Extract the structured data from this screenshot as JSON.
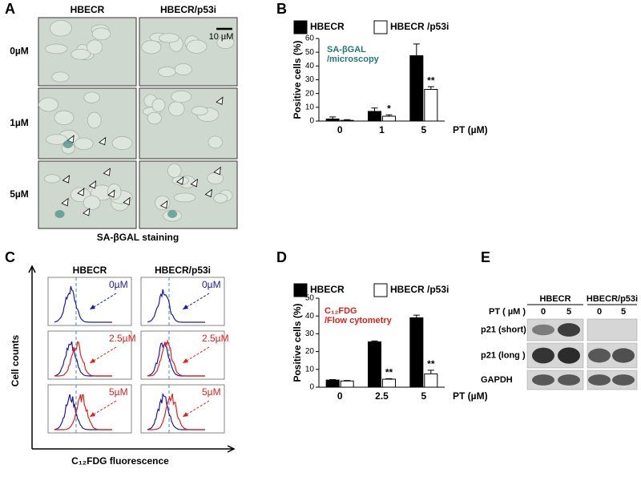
{
  "panel_a": {
    "label": "A",
    "columns": [
      "HBECR",
      "HBECR/p53i"
    ],
    "rows": [
      "0µM",
      "1µM",
      "5µM"
    ],
    "scale_bar": "10 µM",
    "caption": "SA-βGAL staining"
  },
  "chart_data": [
    {
      "type": "bar",
      "label": "B",
      "categories": [
        "0",
        "1",
        "5"
      ],
      "x_label": "PT (µM)",
      "y_label": "Positive cells (%)",
      "annotation": [
        "SA-βGAL",
        "/microscopy"
      ],
      "annotation_color": "#1f7a6e",
      "series": [
        {
          "name": "HBECR",
          "color": "#000000",
          "values": [
            1.5,
            7,
            47.5
          ],
          "errors": [
            1.5,
            2.5,
            8.5
          ]
        },
        {
          "name": "HBECR /p53i",
          "color": "#ffffff",
          "values": [
            0.5,
            3.5,
            23
          ],
          "errors": [
            0.5,
            1,
            2
          ],
          "significance": [
            null,
            "*",
            "**"
          ]
        }
      ],
      "ylim": [
        0,
        60
      ],
      "yticks": [
        0,
        10,
        20,
        30,
        40,
        50,
        60
      ]
    },
    {
      "type": "bar",
      "label": "D",
      "categories": [
        "0",
        "2.5",
        "5"
      ],
      "x_label": "PT (µM)",
      "y_label": "Positive cells (%)",
      "annotation": [
        "C₁₂FDG",
        "/Flow cytometry"
      ],
      "annotation_color": "#e0201b",
      "series": [
        {
          "name": "HBECR",
          "color": "#000000",
          "values": [
            4,
            25.5,
            39
          ],
          "errors": [
            0.3,
            0.5,
            1.5
          ]
        },
        {
          "name": "HBECR /p53i",
          "color": "#ffffff",
          "values": [
            3.5,
            4.5,
            7.5
          ],
          "errors": [
            0.3,
            0.3,
            2
          ],
          "significance": [
            null,
            "**",
            "**"
          ]
        }
      ],
      "ylim": [
        0,
        50
      ],
      "yticks": [
        0,
        10,
        20,
        30,
        40,
        50
      ]
    }
  ],
  "panel_c": {
    "label": "C",
    "columns": [
      "HBECR",
      "HBECR/p53i"
    ],
    "rows": [
      "0µM",
      "2.5µM",
      "5µM"
    ],
    "y_label": "Cell counts",
    "x_label": "C₁₂FDG fluorescence"
  },
  "panel_e": {
    "label": "E",
    "groups": [
      "HBECR",
      "HBECR/p53i"
    ],
    "pt_label": "PT ( µM )",
    "lanes": [
      "0",
      "5",
      "0",
      "5"
    ],
    "rows": [
      "p21 (short)",
      "p21 (long )",
      "GAPDH"
    ]
  }
}
